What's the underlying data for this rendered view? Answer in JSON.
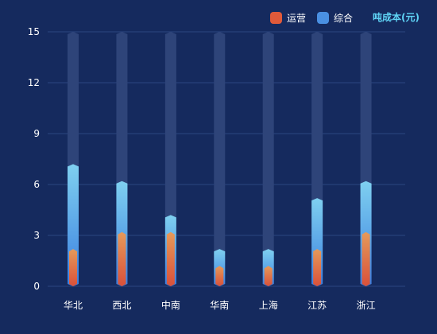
{
  "chart_data": {
    "type": "bar",
    "categories": [
      "华北",
      "西北",
      "中南",
      "华南",
      "上海",
      "江苏",
      "浙江"
    ],
    "series": [
      {
        "name": "运营",
        "values": [
          2.2,
          3.2,
          3.2,
          1.2,
          1.2,
          2.2,
          3.2
        ],
        "color": "#e05a3a"
      },
      {
        "name": "综合",
        "values": [
          7.2,
          6.2,
          4.2,
          2.2,
          2.2,
          5.2,
          6.2
        ],
        "color": "#4a90e2"
      }
    ],
    "background_max": 15,
    "ylim": [
      0,
      15
    ],
    "yticks": [
      0,
      3,
      6,
      9,
      12,
      15
    ],
    "ylabel": "吨成本(元)",
    "legend": "top-right",
    "grid": true,
    "colors": {
      "background": "#152a5e",
      "background_bar": "#2e4479",
      "grid": "#2c4580",
      "unit_label": "#5fd3f5",
      "blue_top": "#7fd0f0",
      "blue_bottom": "#3a7ee0",
      "orange_top": "#e59a5a",
      "orange_bottom": "#d9503a"
    }
  }
}
